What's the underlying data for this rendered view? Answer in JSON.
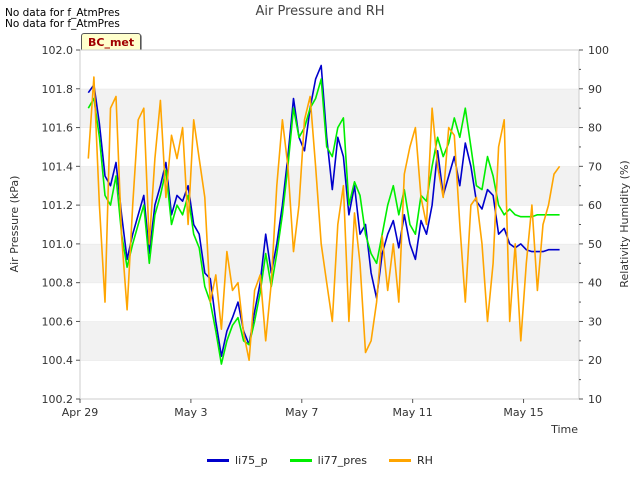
{
  "header": {
    "no_data_1": "No data for f_AtmPres",
    "no_data_2": "No data for f_AtmPres",
    "badge": "BC_met"
  },
  "chart_data": {
    "type": "line",
    "title": "Air Pressure and RH",
    "xlabel": "Time",
    "ylabel": "Air Pressure (kPa)",
    "y2label": "Relativity Humidity (%)",
    "x_tick_labels": [
      "Apr 29",
      "May 3",
      "May 7",
      "May 11",
      "May 15"
    ],
    "x_tick_days": [
      0,
      4,
      8,
      12,
      16
    ],
    "xlim_days": [
      0,
      18
    ],
    "ylim": [
      100.2,
      102.0
    ],
    "y_ticks": [
      100.2,
      100.4,
      100.6,
      100.8,
      101.0,
      101.2,
      101.4,
      101.6,
      101.8,
      102.0
    ],
    "y2lim": [
      10,
      100
    ],
    "y2_ticks": [
      10,
      20,
      30,
      40,
      50,
      60,
      70,
      80,
      90,
      100
    ],
    "grid": "horizontal bands",
    "legend_position": "bottom",
    "colors": {
      "li75_p": "#0000cc",
      "li77_pres": "#00ee00",
      "RH": "#ffa500"
    },
    "series": [
      {
        "name": "li75_p",
        "axis": "left",
        "x": [
          0.3,
          0.5,
          0.7,
          0.9,
          1.1,
          1.3,
          1.5,
          1.7,
          1.9,
          2.1,
          2.3,
          2.5,
          2.7,
          2.9,
          3.1,
          3.3,
          3.5,
          3.7,
          3.9,
          4.1,
          4.3,
          4.5,
          4.7,
          4.9,
          5.1,
          5.3,
          5.5,
          5.7,
          5.9,
          6.1,
          6.3,
          6.5,
          6.7,
          6.9,
          7.1,
          7.3,
          7.5,
          7.7,
          7.9,
          8.1,
          8.3,
          8.5,
          8.7,
          8.9,
          9.1,
          9.3,
          9.5,
          9.7,
          9.9,
          10.1,
          10.3,
          10.5,
          10.7,
          10.9,
          11.1,
          11.3,
          11.5,
          11.7,
          11.9,
          12.1,
          12.3,
          12.5,
          12.7,
          12.9,
          13.1,
          13.3,
          13.5,
          13.7,
          13.9,
          14.1,
          14.3,
          14.5,
          14.7,
          14.9,
          15.1,
          15.3,
          15.5,
          15.7,
          15.9,
          16.1,
          16.3,
          16.5,
          16.7,
          16.9,
          17.1,
          17.3
        ],
        "values": [
          101.78,
          101.82,
          101.62,
          101.35,
          101.3,
          101.42,
          101.15,
          100.92,
          101.05,
          101.15,
          101.25,
          100.95,
          101.2,
          101.3,
          101.42,
          101.15,
          101.25,
          101.22,
          101.3,
          101.1,
          101.05,
          100.85,
          100.82,
          100.6,
          100.42,
          100.55,
          100.62,
          100.7,
          100.55,
          100.48,
          100.65,
          100.8,
          101.05,
          100.85,
          101.0,
          101.2,
          101.45,
          101.75,
          101.55,
          101.48,
          101.7,
          101.85,
          101.92,
          101.55,
          101.28,
          101.55,
          101.45,
          101.15,
          101.3,
          101.05,
          101.1,
          100.85,
          100.72,
          100.95,
          101.05,
          101.12,
          100.98,
          101.15,
          101.0,
          100.92,
          101.12,
          101.05,
          101.2,
          101.48,
          101.25,
          101.35,
          101.45,
          101.3,
          101.52,
          101.4,
          101.22,
          101.18,
          101.28,
          101.25,
          101.05,
          101.08,
          101.0,
          100.98,
          101.0,
          100.97,
          100.96,
          100.96,
          100.96,
          100.97,
          100.97,
          100.97
        ]
      },
      {
        "name": "li77_pres",
        "axis": "left",
        "x": [
          0.3,
          0.5,
          0.7,
          0.9,
          1.1,
          1.3,
          1.5,
          1.7,
          1.9,
          2.1,
          2.3,
          2.5,
          2.7,
          2.9,
          3.1,
          3.3,
          3.5,
          3.7,
          3.9,
          4.1,
          4.3,
          4.5,
          4.7,
          4.9,
          5.1,
          5.3,
          5.5,
          5.7,
          5.9,
          6.1,
          6.3,
          6.5,
          6.7,
          6.9,
          7.1,
          7.3,
          7.5,
          7.7,
          7.9,
          8.1,
          8.3,
          8.5,
          8.7,
          8.9,
          9.1,
          9.3,
          9.5,
          9.7,
          9.9,
          10.1,
          10.3,
          10.5,
          10.7,
          10.9,
          11.1,
          11.3,
          11.5,
          11.7,
          11.9,
          12.1,
          12.3,
          12.5,
          12.7,
          12.9,
          13.1,
          13.3,
          13.5,
          13.7,
          13.9,
          14.1,
          14.3,
          14.5,
          14.7,
          14.9,
          15.1,
          15.3,
          15.5,
          15.7,
          15.9,
          16.1,
          16.3,
          16.5,
          16.7,
          16.9,
          17.1,
          17.3
        ],
        "values": [
          101.7,
          101.75,
          101.55,
          101.25,
          101.2,
          101.35,
          101.05,
          100.88,
          101.0,
          101.1,
          101.2,
          100.9,
          101.15,
          101.25,
          101.38,
          101.1,
          101.2,
          101.15,
          101.25,
          101.05,
          100.98,
          100.78,
          100.7,
          100.55,
          100.38,
          100.5,
          100.58,
          100.62,
          100.5,
          100.48,
          100.6,
          100.75,
          100.95,
          100.78,
          100.95,
          101.15,
          101.4,
          101.7,
          101.55,
          101.6,
          101.7,
          101.75,
          101.85,
          101.5,
          101.45,
          101.6,
          101.65,
          101.2,
          101.32,
          101.25,
          101.05,
          100.95,
          100.9,
          101.05,
          101.2,
          101.3,
          101.15,
          101.28,
          101.1,
          101.05,
          101.25,
          101.22,
          101.4,
          101.55,
          101.45,
          101.52,
          101.65,
          101.55,
          101.7,
          101.5,
          101.3,
          101.28,
          101.45,
          101.35,
          101.2,
          101.15,
          101.18,
          101.15,
          101.14,
          101.14,
          101.14,
          101.15,
          101.15,
          101.15,
          101.15,
          101.15
        ]
      },
      {
        "name": "RH",
        "axis": "right",
        "x": [
          0.3,
          0.5,
          0.7,
          0.9,
          1.1,
          1.3,
          1.5,
          1.7,
          1.9,
          2.1,
          2.3,
          2.5,
          2.7,
          2.9,
          3.1,
          3.3,
          3.5,
          3.7,
          3.9,
          4.1,
          4.3,
          4.5,
          4.7,
          4.9,
          5.1,
          5.3,
          5.5,
          5.7,
          5.9,
          6.1,
          6.3,
          6.5,
          6.7,
          6.9,
          7.1,
          7.3,
          7.5,
          7.7,
          7.9,
          8.1,
          8.3,
          8.5,
          8.7,
          8.9,
          9.1,
          9.3,
          9.5,
          9.7,
          9.9,
          10.1,
          10.3,
          10.5,
          10.7,
          10.9,
          11.1,
          11.3,
          11.5,
          11.7,
          11.9,
          12.1,
          12.3,
          12.5,
          12.7,
          12.9,
          13.1,
          13.3,
          13.5,
          13.7,
          13.9,
          14.1,
          14.3,
          14.5,
          14.7,
          14.9,
          15.1,
          15.3,
          15.5,
          15.7,
          15.9,
          16.1,
          16.3,
          16.5,
          16.7,
          16.9,
          17.1,
          17.3
        ],
        "values": [
          72,
          93,
          60,
          35,
          85,
          88,
          52,
          33,
          60,
          82,
          85,
          50,
          72,
          87,
          62,
          78,
          72,
          80,
          55,
          82,
          72,
          62,
          35,
          42,
          28,
          48,
          38,
          40,
          27,
          20,
          38,
          42,
          25,
          40,
          65,
          82,
          70,
          48,
          60,
          82,
          88,
          70,
          50,
          40,
          30,
          55,
          65,
          30,
          58,
          45,
          22,
          25,
          35,
          52,
          38,
          50,
          35,
          68,
          75,
          80,
          62,
          55,
          85,
          70,
          62,
          80,
          78,
          55,
          35,
          60,
          62,
          50,
          30,
          45,
          75,
          82,
          30,
          50,
          25,
          45,
          60,
          38,
          55,
          60,
          68,
          70
        ]
      }
    ]
  }
}
